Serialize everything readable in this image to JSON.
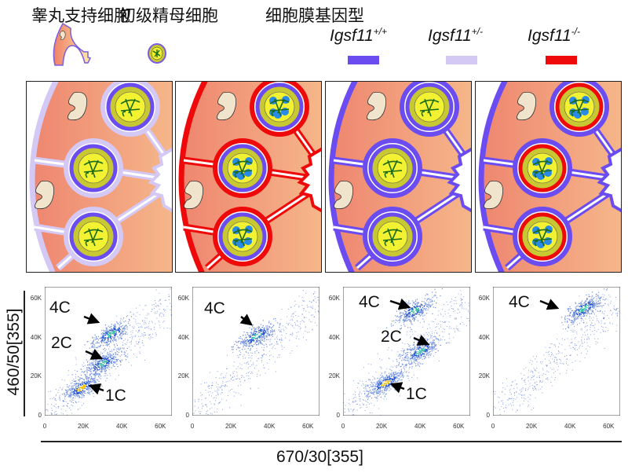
{
  "legend": {
    "sertoli_label": "睾丸支持细胞",
    "spermatocyte_label": "初级精母细胞",
    "genotype_title": "细胞膜基因型",
    "genotypes": [
      {
        "name": "Igsf11",
        "sup": "+/+",
        "color": "#6a4cf0"
      },
      {
        "name": "Igsf11",
        "sup": "+/-",
        "color": "#d4c8f4"
      },
      {
        "name": "Igsf11",
        "sup": "-/-",
        "color": "#ee0a0a"
      }
    ]
  },
  "panels": [
    {
      "sertoli_membrane": "#d4c8f4",
      "germ_membrane": "#6a4cf0",
      "blue_spots": false
    },
    {
      "sertoli_membrane": "#ee0a0a",
      "germ_membrane": "#6a4cf0",
      "blue_spots": true
    },
    {
      "sertoli_membrane": "#6a4cf0",
      "germ_membrane": "#6a4cf0",
      "blue_spots": false
    },
    {
      "sertoli_membrane": "#6a4cf0",
      "germ_membrane": "#ee0a0a",
      "blue_spots": true
    }
  ],
  "axes": {
    "ylabel": "460/50[355]",
    "xlabel": "670/30[355]",
    "ticks": [
      "0",
      "20K",
      "40K",
      "60K"
    ],
    "tick_values": [
      0,
      20000,
      40000,
      60000
    ],
    "range": [
      0,
      66000
    ]
  },
  "chart_data": [
    {
      "type": "scatter",
      "annotations": [
        "4C",
        "2C",
        "1C"
      ],
      "clusters": [
        {
          "label": "1C",
          "x": 19000,
          "y": 14500
        },
        {
          "label": "2C",
          "x": 30000,
          "y": 27000
        },
        {
          "label": "4C",
          "x": 34000,
          "y": 42000
        }
      ]
    },
    {
      "type": "scatter",
      "annotations": [
        "4C"
      ],
      "clusters": [
        {
          "label": "4C",
          "x": 33000,
          "y": 41000
        }
      ]
    },
    {
      "type": "scatter",
      "annotations": [
        "4C",
        "2C",
        "1C"
      ],
      "clusters": [
        {
          "label": "1C",
          "x": 22000,
          "y": 17000
        },
        {
          "label": "2C",
          "x": 40000,
          "y": 33000
        },
        {
          "label": "4C",
          "x": 37000,
          "y": 54000
        }
      ]
    },
    {
      "type": "scatter",
      "annotations": [
        "4C"
      ],
      "clusters": [
        {
          "label": "4C",
          "x": 47000,
          "y": 55000
        }
      ]
    }
  ]
}
